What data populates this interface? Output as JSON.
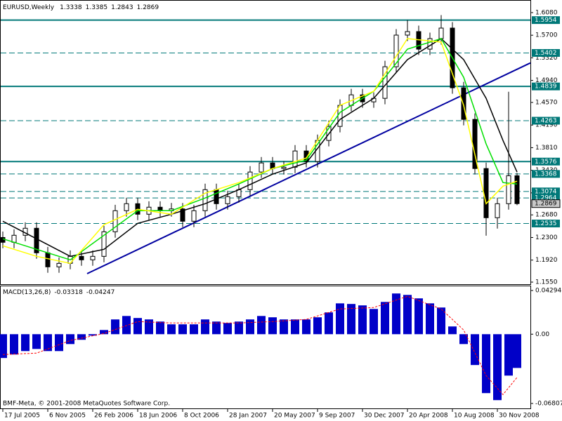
{
  "chart_data": [
    {
      "type": "candlestick",
      "title": "EURUSD,Weekly",
      "x": [
        0,
        4,
        8,
        12,
        16,
        20,
        24,
        28,
        32,
        36,
        40,
        44,
        48,
        52,
        56,
        60,
        64,
        68,
        72,
        76,
        80,
        84,
        88,
        92,
        96,
        100,
        104,
        108,
        112,
        116,
        120,
        124,
        128,
        132,
        136,
        140,
        144,
        148,
        152,
        156,
        160,
        164,
        168,
        172,
        176,
        180,
        183
      ],
      "open": [
        1.23,
        1.2219,
        1.2337,
        1.2455,
        1.2042,
        1.1806,
        1.1865,
        1.1983,
        1.1924,
        1.1983,
        1.2396,
        1.275,
        1.2868,
        1.2691,
        1.2809,
        1.275,
        1.278,
        1.2573,
        1.275,
        1.3104,
        1.2868,
        1.2986,
        1.3104,
        1.34,
        1.3553,
        1.3459,
        1.3482,
        1.3754,
        1.3577,
        1.3931,
        1.4167,
        1.4521,
        1.4698,
        1.458,
        1.4639,
        1.517,
        1.5702,
        1.5761,
        1.5466,
        1.5643,
        1.582,
        1.4816,
        1.4285,
        1.3459,
        1.2632,
        1.2868,
        1.3338
      ],
      "high": [
        1.24,
        1.2437,
        1.2555,
        1.2555,
        1.2142,
        1.1965,
        1.2083,
        1.2083,
        1.2083,
        1.2496,
        1.285,
        1.2968,
        1.2968,
        1.2909,
        1.2909,
        1.288,
        1.288,
        1.285,
        1.3204,
        1.3204,
        1.3086,
        1.3204,
        1.35,
        1.3653,
        1.3653,
        1.3582,
        1.3854,
        1.3854,
        1.4031,
        1.4267,
        1.4621,
        1.4798,
        1.4798,
        1.4739,
        1.527,
        1.5802,
        1.5954,
        1.5861,
        1.5743,
        1.6038,
        1.592,
        1.4916,
        1.4385,
        1.3559,
        1.2968,
        1.475,
        1.3385
      ],
      "low": [
        1.2119,
        1.2119,
        1.2237,
        1.1942,
        1.1706,
        1.1706,
        1.1765,
        1.1824,
        1.1824,
        1.1883,
        1.2296,
        1.265,
        1.2591,
        1.2591,
        1.265,
        1.265,
        1.2473,
        1.2473,
        1.265,
        1.2768,
        1.2768,
        1.2886,
        1.3004,
        1.33,
        1.3359,
        1.3359,
        1.3382,
        1.3477,
        1.3477,
        1.3831,
        1.4067,
        1.4421,
        1.448,
        1.448,
        1.4539,
        1.507,
        1.5602,
        1.5366,
        1.5366,
        1.5543,
        1.4716,
        1.4185,
        1.3359,
        1.233,
        1.245,
        1.2768,
        1.2843
      ],
      "close": [
        1.2219,
        1.2337,
        1.2455,
        1.2042,
        1.1806,
        1.1865,
        1.1983,
        1.1924,
        1.1983,
        1.2396,
        1.275,
        1.2868,
        1.2691,
        1.2809,
        1.275,
        1.278,
        1.2573,
        1.275,
        1.3104,
        1.2868,
        1.2986,
        1.3104,
        1.34,
        1.3553,
        1.3459,
        1.3482,
        1.3754,
        1.3577,
        1.3931,
        1.4167,
        1.4521,
        1.4698,
        1.458,
        1.4639,
        1.517,
        1.5702,
        1.5761,
        1.5466,
        1.5643,
        1.582,
        1.4816,
        1.4285,
        1.3459,
        1.2632,
        1.2868,
        1.3338,
        1.2869
      ],
      "lines": [
        {
          "color": "#000000",
          "x": [
            0,
            12,
            24,
            36,
            48,
            60,
            72,
            84,
            96,
            108,
            120,
            132,
            144,
            156,
            164,
            172,
            178,
            183
          ],
          "values": [
            1.2573,
            1.2278,
            1.1983,
            1.2101,
            1.2538,
            1.2691,
            1.2868,
            1.3104,
            1.3364,
            1.3553,
            1.4285,
            1.4639,
            1.5289,
            1.5643,
            1.5289,
            1.4639,
            1.3931,
            1.34
          ]
        },
        {
          "color": "#00e000",
          "x": [
            0,
            12,
            24,
            36,
            48,
            60,
            72,
            84,
            96,
            108,
            120,
            132,
            144,
            156,
            164,
            172,
            178,
            183
          ],
          "values": [
            1.2278,
            1.2101,
            1.1924,
            1.2337,
            1.275,
            1.275,
            1.2963,
            1.3199,
            1.3459,
            1.36,
            1.4403,
            1.4757,
            1.5466,
            1.5643,
            1.4993,
            1.3872,
            1.3223,
            1.3199
          ]
        },
        {
          "color": "#ffff00",
          "x": [
            0,
            12,
            24,
            36,
            48,
            60,
            72,
            84,
            96,
            108,
            120,
            132,
            144,
            156,
            164,
            172,
            178,
            183
          ],
          "values": [
            1.216,
            1.1983,
            1.1865,
            1.2514,
            1.2774,
            1.2691,
            1.3045,
            1.3223,
            1.3459,
            1.3636,
            1.4521,
            1.4757,
            1.5643,
            1.5584,
            1.4521,
            1.2868,
            1.3163,
            1.3246
          ]
        }
      ],
      "levels": [
        {
          "value": 1.5954,
          "style": "solid"
        },
        {
          "value": 1.5402,
          "style": "dashed"
        },
        {
          "value": 1.4839,
          "style": "solid"
        },
        {
          "value": 1.4263,
          "style": "dashed"
        },
        {
          "value": 1.3576,
          "style": "solid"
        },
        {
          "value": 1.3368,
          "style": "dashed"
        },
        {
          "value": 1.3074,
          "style": "dashed"
        },
        {
          "value": 1.2964,
          "style": "dashed"
        },
        {
          "value": 1.2535,
          "style": "dashed"
        }
      ],
      "level_color": "#007878",
      "trendline": {
        "x": [
          30,
          187.75
        ],
        "values": [
          1.1692,
          1.5234
        ],
        "color": "#0000a0"
      },
      "xlim": [
        -1,
        187.75
      ],
      "ylim": [
        1.1515,
        1.6233
      ],
      "yticks": [
        {
          "value": 1.608,
          "label": "1.6080"
        },
        {
          "value": 1.57,
          "label": "1.5700"
        },
        {
          "value": 1.532,
          "label": "1.5320"
        },
        {
          "value": 1.494,
          "label": "1.4940"
        },
        {
          "value": 1.457,
          "label": "1.4570"
        },
        {
          "value": 1.419,
          "label": "1.4190"
        },
        {
          "value": 1.381,
          "label": "1.3810"
        },
        {
          "value": 1.343,
          "label": "1.3430"
        },
        {
          "value": 1.305,
          "label": "1.3050"
        },
        {
          "value": 1.268,
          "label": "1.2680"
        },
        {
          "value": 1.23,
          "label": "1.2300"
        },
        {
          "value": 1.192,
          "label": "1.1920"
        },
        {
          "value": 1.155,
          "label": "1.1550"
        }
      ]
    },
    {
      "type": "macd",
      "title": "MACD(13,26,8)",
      "x": [
        0,
        4,
        8,
        12,
        16,
        20,
        24,
        28,
        32,
        36,
        40,
        44,
        48,
        52,
        56,
        60,
        64,
        68,
        72,
        76,
        80,
        84,
        88,
        92,
        96,
        100,
        104,
        108,
        112,
        116,
        120,
        124,
        128,
        132,
        136,
        140,
        144,
        148,
        152,
        156,
        160,
        164,
        168,
        172,
        176,
        180,
        183
      ],
      "values": [
        -0.0234,
        -0.02,
        -0.0166,
        -0.0145,
        -0.0166,
        -0.0166,
        -0.0097,
        -0.0055,
        -0.0014,
        0.0041,
        0.0145,
        0.0179,
        0.0159,
        0.0145,
        0.0124,
        0.0097,
        0.0097,
        0.0097,
        0.0145,
        0.0124,
        0.011,
        0.0124,
        0.0145,
        0.0179,
        0.0166,
        0.0145,
        0.0145,
        0.0145,
        0.0166,
        0.0214,
        0.0303,
        0.0297,
        0.0283,
        0.0248,
        0.0317,
        0.04,
        0.0386,
        0.0352,
        0.0303,
        0.0262,
        0.0076,
        -0.0097,
        -0.0303,
        -0.0579,
        -0.0648,
        -0.0407,
        -0.03318
      ],
      "color": "#0000c8",
      "signal": {
        "color": "#ff0000",
        "x": [
          0,
          12,
          24,
          36,
          48,
          60,
          72,
          84,
          96,
          108,
          120,
          132,
          144,
          156,
          164,
          172,
          178,
          183
        ],
        "values": [
          -0.02,
          -0.0186,
          -0.0062,
          0.0007,
          0.0124,
          0.011,
          0.011,
          0.011,
          0.0124,
          0.0145,
          0.0248,
          0.0262,
          0.0372,
          0.0248,
          0.0041,
          -0.0407,
          -0.0593,
          -0.04247
        ]
      },
      "xlim": [
        -1,
        187.75
      ],
      "ylim": [
        -0.0729,
        0.04708
      ],
      "yticks": [
        0.04294,
        {
          "value": 0,
          "label": "0.00"
        },
        -0.06807
      ],
      "xticks": [
        {
          "value": 0,
          "label": "17 Jul 2005"
        },
        {
          "value": 16,
          "label": "6 Nov 2005"
        },
        {
          "value": 32,
          "label": "26 Feb 2006"
        },
        {
          "value": 48,
          "label": "18 Jun 2006"
        },
        {
          "value": 64,
          "label": "8 Oct 2006"
        },
        {
          "value": 80,
          "label": "28 Jan 2007"
        },
        {
          "value": 96,
          "label": "20 May 2007"
        },
        {
          "value": 112,
          "label": "9 Sep 2007"
        },
        {
          "value": 128,
          "label": "30 Dec 2007"
        },
        {
          "value": 144,
          "label": "20 Apr 2008"
        },
        {
          "value": 160,
          "label": "10 Aug 2008"
        },
        {
          "value": 176,
          "label": "30 Nov 2008"
        }
      ],
      "copyright": "BMF-Meta, © 2001-2008 MetaQuotes Software Corp."
    }
  ]
}
